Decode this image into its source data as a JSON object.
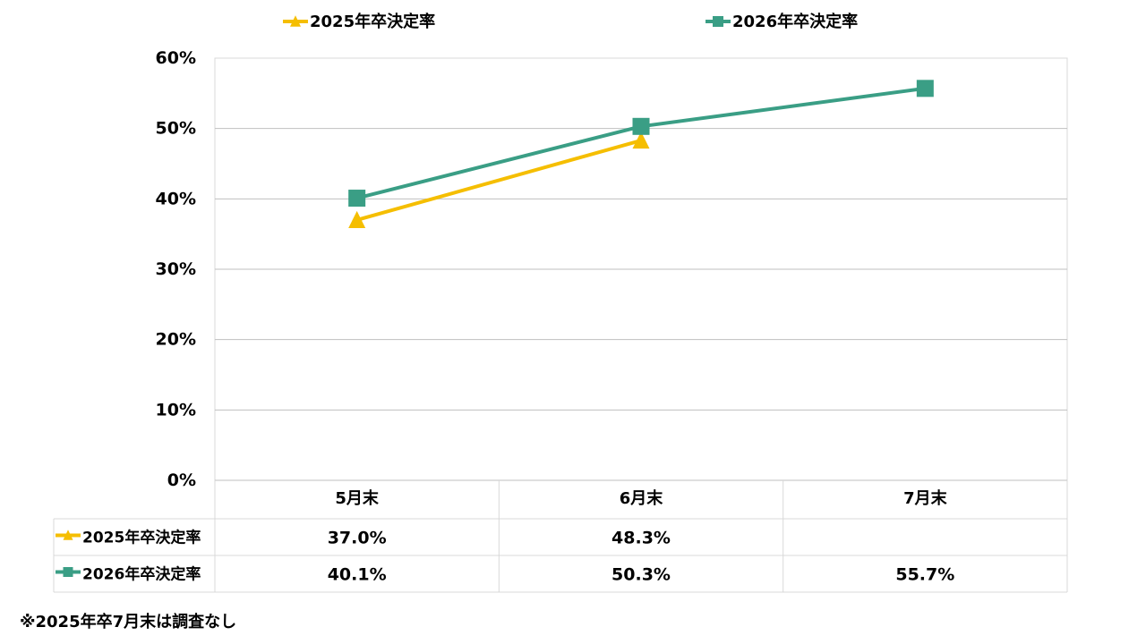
{
  "chart_data": {
    "type": "line",
    "categories": [
      "5月末",
      "6月末",
      "7月末"
    ],
    "series": [
      {
        "name": "2025年卒決定率",
        "values": [
          37.0,
          48.3,
          null
        ],
        "labels": [
          "37.0%",
          "48.3%",
          ""
        ],
        "color": "#F5BE00",
        "marker": "triangle"
      },
      {
        "name": "2026年卒決定率",
        "values": [
          40.1,
          50.3,
          55.7
        ],
        "labels": [
          "40.1%",
          "50.3%",
          "55.7%"
        ],
        "color": "#3A9E85",
        "marker": "square"
      }
    ],
    "ylim": [
      0,
      60
    ],
    "yticks": [
      0,
      10,
      20,
      30,
      40,
      50,
      60
    ],
    "ytick_labels": [
      "0%",
      "10%",
      "20%",
      "30%",
      "40%",
      "50%",
      "60%"
    ],
    "grid": true,
    "legend_position": "top",
    "data_table": true
  },
  "footnote": "※2025年卒7月末は調査なし",
  "colors": {
    "grid": "#BFBFBF",
    "border": "#D9D9D9"
  }
}
